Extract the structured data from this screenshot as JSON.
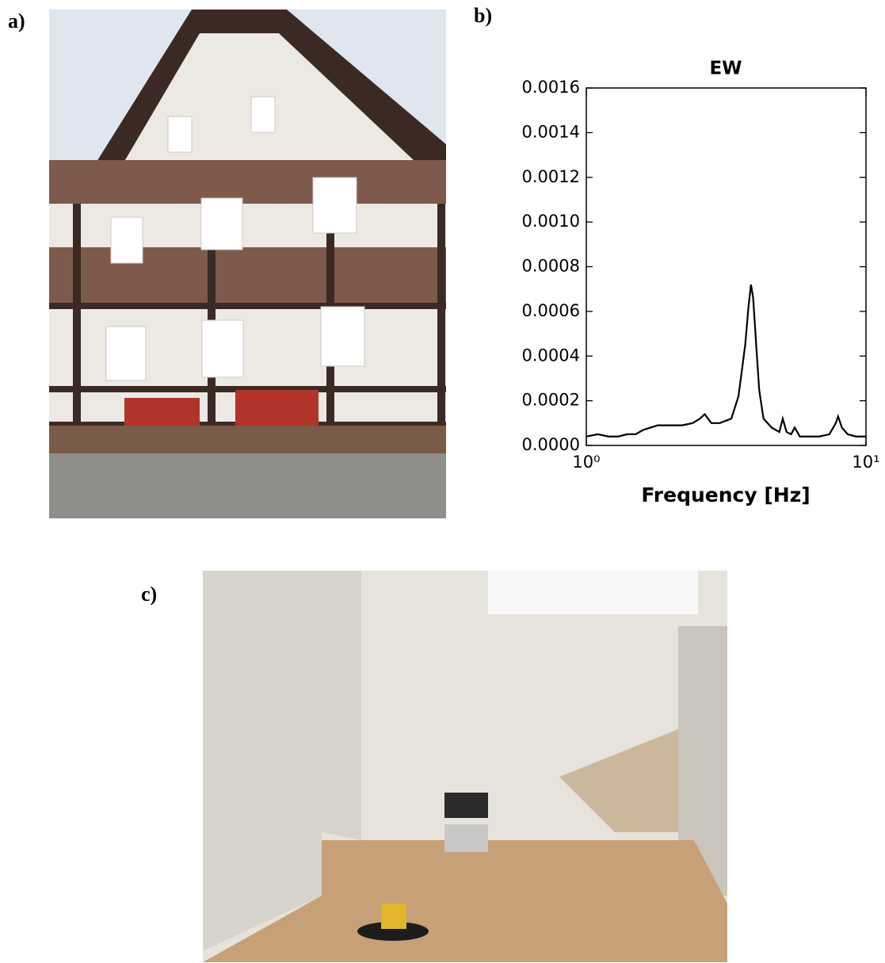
{
  "panel_labels": [
    "a)",
    "b)",
    "c)"
  ],
  "chart_data": {
    "type": "line",
    "title": "EW",
    "xlabel": "Frequency [Hz]",
    "log_x": true,
    "x": [
      1.0,
      1.1,
      1.2,
      1.3,
      1.4,
      1.5,
      1.6,
      1.7,
      1.8,
      2.0,
      2.2,
      2.4,
      2.55,
      2.65,
      2.8,
      3.0,
      3.3,
      3.5,
      3.7,
      3.8,
      3.88,
      3.95,
      4.05,
      4.15,
      4.3,
      4.6,
      4.9,
      5.04,
      5.2,
      5.4,
      5.56,
      5.8,
      6.2,
      6.8,
      7.4,
      7.8,
      7.95,
      8.2,
      8.6,
      9.2,
      10.0
    ],
    "series": [
      {
        "name": "EW",
        "color": "#000000",
        "values": [
          4e-05,
          5e-05,
          4e-05,
          4e-05,
          5e-05,
          5e-05,
          7e-05,
          8e-05,
          9e-05,
          9e-05,
          9e-05,
          0.0001,
          0.00012,
          0.00014,
          0.0001,
          0.0001,
          0.00012,
          0.00022,
          0.00045,
          0.00062,
          0.00072,
          0.00066,
          0.00045,
          0.00025,
          0.00012,
          8e-05,
          6e-05,
          0.00012,
          6e-05,
          5e-05,
          8e-05,
          4e-05,
          4e-05,
          4e-05,
          5e-05,
          0.0001,
          0.00013,
          8e-05,
          5e-05,
          4e-05,
          4e-05
        ]
      }
    ],
    "xlim": [
      1,
      10
    ],
    "xticks": [
      {
        "value": 1,
        "label": "10⁰"
      },
      {
        "value": 10,
        "label": "10¹"
      }
    ],
    "ylim": [
      0,
      0.0016
    ],
    "yticks": [
      {
        "value": 0,
        "label": "0.0000"
      },
      {
        "value": 0.0002,
        "label": "0.0002"
      },
      {
        "value": 0.0004,
        "label": "0.0004"
      },
      {
        "value": 0.0006,
        "label": "0.0006"
      },
      {
        "value": 0.0008,
        "label": "0.0008"
      },
      {
        "value": 0.001,
        "label": "0.0010"
      },
      {
        "value": 0.0012,
        "label": "0.0012"
      },
      {
        "value": 0.0014,
        "label": "0.0014"
      },
      {
        "value": 0.0016,
        "label": "0.0016"
      }
    ],
    "grid": false
  }
}
